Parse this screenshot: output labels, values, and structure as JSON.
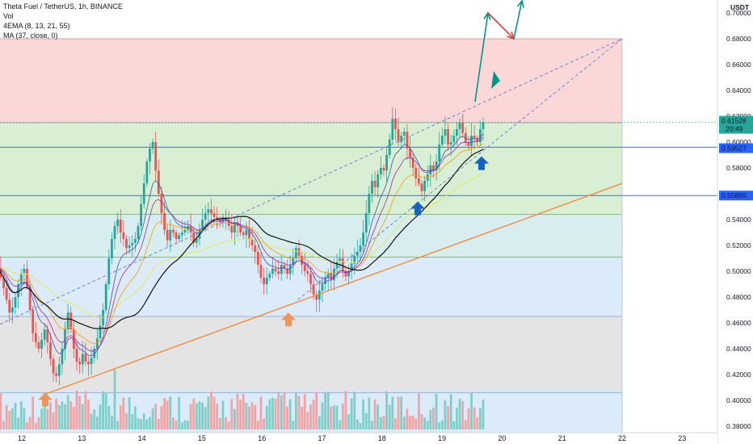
{
  "legend": {
    "title": "Theta Fuel / TetherUS, 1h, BINANCE",
    "vol": "Vol",
    "ema": "4EMA (8, 13, 21, 55)",
    "ma": "MA (37, close, 0)"
  },
  "currency": "USDT",
  "colors": {
    "up": "#26a69a",
    "down": "#ef5350",
    "vol_up": "#7fcfc7",
    "vol_down": "#f2a3a3",
    "ma": "#000000",
    "ema8": "#3f51b5",
    "ema13": "#9c27b0",
    "ema21": "#ff9800",
    "ema55": "#e5e85a",
    "trend": "#f08a3c",
    "channel": "#5b7ed6",
    "arrow_teal": "#009688",
    "arrow_red": "#e53935",
    "arrow_blue": "#1565c0",
    "arrow_orange": "#f0955a",
    "zone_red": "#fbd7d7",
    "zone_green": "#d9efd4",
    "zone_teal": "#d5eee8",
    "zone_blue": "#dcebfa",
    "zone_gray": "#e4e4e4"
  },
  "chart_data": {
    "type": "candlestick",
    "title": "Theta Fuel / TetherUS, 1h, BINANCE",
    "ylim": [
      0.375,
      0.71
    ],
    "y_ticks": [
      "0.70000",
      "0.68000",
      "0.66000",
      "0.64000",
      "0.62000",
      "0.60000",
      "0.58000",
      "0.56000",
      "0.54000",
      "0.52000",
      "0.50000",
      "0.48000",
      "0.46000",
      "0.44000",
      "0.42000",
      "0.40000",
      "0.38000"
    ],
    "x_ticks": [
      "12",
      "13",
      "14",
      "15",
      "16",
      "17",
      "18",
      "19",
      "20",
      "21",
      "22",
      "23"
    ],
    "current_price": {
      "value": "0.61528",
      "countdown": "20:49"
    },
    "price_labels": [
      {
        "value": 0.59527,
        "label": "0.59527"
      },
      {
        "value": 0.5586,
        "label": "0.55860"
      }
    ],
    "horizontal_levels": [
      0.68,
      0.615,
      0.596,
      0.5586,
      0.544,
      0.511,
      0.465,
      0.406
    ],
    "zones": [
      {
        "from": 0.615,
        "to": 0.68,
        "color": "red"
      },
      {
        "from": 0.511,
        "to": 0.615,
        "color": "green"
      },
      {
        "from": 0.465,
        "to": 0.544,
        "color": "blue"
      },
      {
        "from": 0.406,
        "to": 0.465,
        "color": "gray"
      },
      {
        "from": 0.375,
        "to": 0.406,
        "color": "blue"
      }
    ],
    "closes": [
      0.503,
      0.495,
      0.487,
      0.478,
      0.468,
      0.472,
      0.48,
      0.49,
      0.498,
      0.502,
      0.488,
      0.47,
      0.452,
      0.445,
      0.44,
      0.447,
      0.455,
      0.445,
      0.432,
      0.421,
      0.419,
      0.428,
      0.44,
      0.455,
      0.468,
      0.455,
      0.44,
      0.43,
      0.428,
      0.436,
      0.43,
      0.428,
      0.433,
      0.44,
      0.448,
      0.458,
      0.47,
      0.49,
      0.51,
      0.525,
      0.535,
      0.54,
      0.53,
      0.525,
      0.518,
      0.52,
      0.522,
      0.525,
      0.535,
      0.552,
      0.568,
      0.585,
      0.595,
      0.6,
      0.578,
      0.56,
      0.545,
      0.532,
      0.524,
      0.532,
      0.53,
      0.525,
      0.528,
      0.53,
      0.532,
      0.535,
      0.53,
      0.522,
      0.525,
      0.532,
      0.54,
      0.545,
      0.548,
      0.545,
      0.542,
      0.54,
      0.538,
      0.542,
      0.54,
      0.535,
      0.53,
      0.538,
      0.535,
      0.53,
      0.528,
      0.532,
      0.525,
      0.52,
      0.515,
      0.505,
      0.495,
      0.49,
      0.495,
      0.498,
      0.502,
      0.5,
      0.498,
      0.505,
      0.502,
      0.498,
      0.505,
      0.51,
      0.518,
      0.512,
      0.505,
      0.5,
      0.498,
      0.49,
      0.482,
      0.478,
      0.485,
      0.49,
      0.495,
      0.498,
      0.493,
      0.502,
      0.508,
      0.51,
      0.5,
      0.496,
      0.5,
      0.506,
      0.512,
      0.515,
      0.52,
      0.53,
      0.545,
      0.56,
      0.57,
      0.565,
      0.575,
      0.58,
      0.578,
      0.59,
      0.602,
      0.618,
      0.61,
      0.6,
      0.605,
      0.608,
      0.595,
      0.588,
      0.58,
      0.572,
      0.568,
      0.562,
      0.57,
      0.575,
      0.582,
      0.578,
      0.585,
      0.598,
      0.605,
      0.61,
      0.598,
      0.6,
      0.605,
      0.61,
      0.615,
      0.607,
      0.6,
      0.597,
      0.605,
      0.603,
      0.6,
      0.61,
      0.61528
    ],
    "ema_periods": [
      8,
      13,
      21,
      55
    ],
    "ma_period": 37
  }
}
